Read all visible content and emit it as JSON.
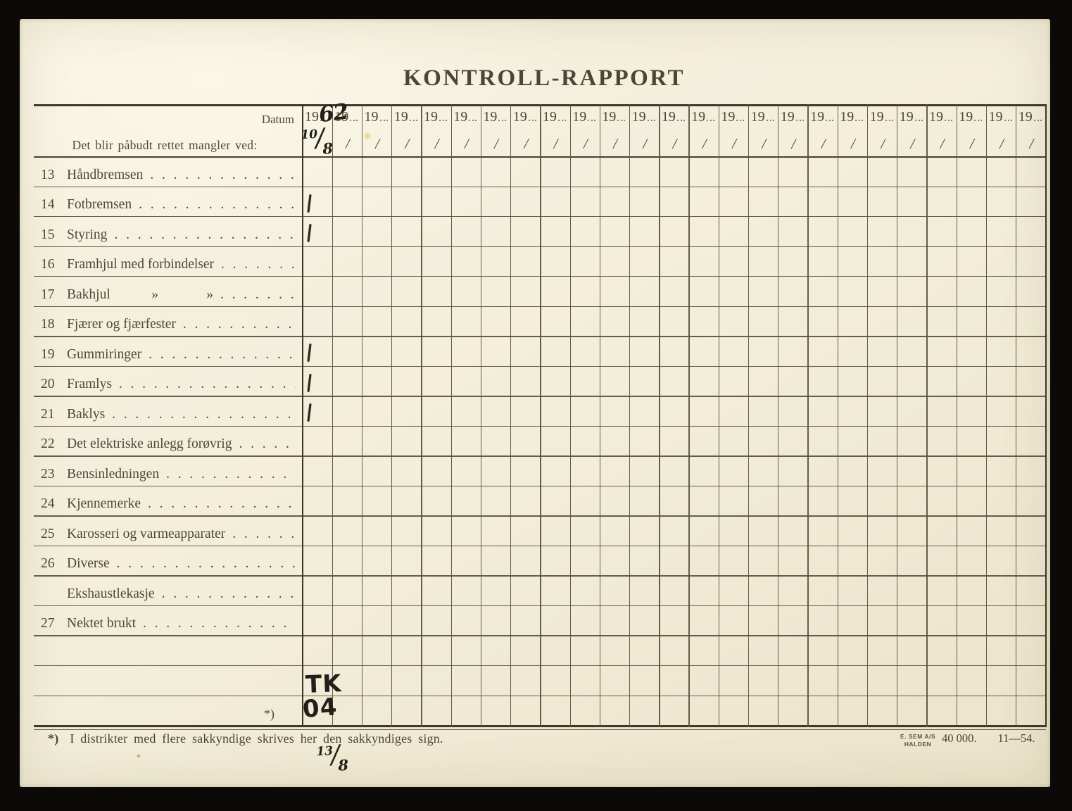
{
  "title": "KONTROLL-RAPPORT",
  "header": {
    "datum_label": "Datum",
    "subtitle": "Det blir påbudt rettet mangler ved:",
    "year_prefix": "19",
    "date_slash": "/",
    "column_count": 25
  },
  "rows": [
    {
      "num": "13",
      "label": "Håndbremsen"
    },
    {
      "num": "14",
      "label": "Fotbremsen"
    },
    {
      "num": "15",
      "label": "Styring"
    },
    {
      "num": "16",
      "label": "Framhjul med forbindelser"
    },
    {
      "num": "17",
      "label": "Bakhjul   »    »"
    },
    {
      "num": "18",
      "label": "Fjærer og fjærfester"
    },
    {
      "num": "19",
      "label": "Gummiringer"
    },
    {
      "num": "20",
      "label": "Framlys"
    },
    {
      "num": "21",
      "label": "Baklys"
    },
    {
      "num": "22",
      "label": "Det elektriske anlegg forøvrig"
    },
    {
      "num": "23",
      "label": "Bensinledningen"
    },
    {
      "num": "24",
      "label": "Kjennemerke"
    },
    {
      "num": "25",
      "label": "Karosseri og varmeapparater"
    },
    {
      "num": "26",
      "label": "Diverse"
    },
    {
      "num": "",
      "label": "Ekshaustlekasje"
    },
    {
      "num": "27",
      "label": "Nektet brukt"
    },
    {
      "num": "",
      "label": ""
    },
    {
      "num": "",
      "label": ""
    },
    {
      "num": "",
      "label": "",
      "marker": "*)"
    }
  ],
  "handwriting": {
    "year_suffix": "62",
    "date_day": "10",
    "date_month": "8",
    "tick_item_numbers": [
      "14",
      "15",
      "19",
      "20",
      "21"
    ],
    "tick_glyph": "1",
    "sign_line1": "TK",
    "sign_line2": "04",
    "bottom_date_day": "13",
    "bottom_date_month": "8"
  },
  "footer": {
    "footnote_marker": "*)",
    "footnote_text": "I distrikter med flere sakkyndige skrives her den sakkyndiges sign.",
    "imprint_line1": "E. SEM A/S",
    "imprint_line2": "HALDEN",
    "imprint_quantity": "40 000.",
    "imprint_datecode": "11—54."
  },
  "colors": {
    "background": "#0b0a08",
    "paper": "#f3eeda",
    "ink": "#4e4837",
    "grid_line": "#58513c",
    "handwriting_ink": "#221f1a"
  }
}
